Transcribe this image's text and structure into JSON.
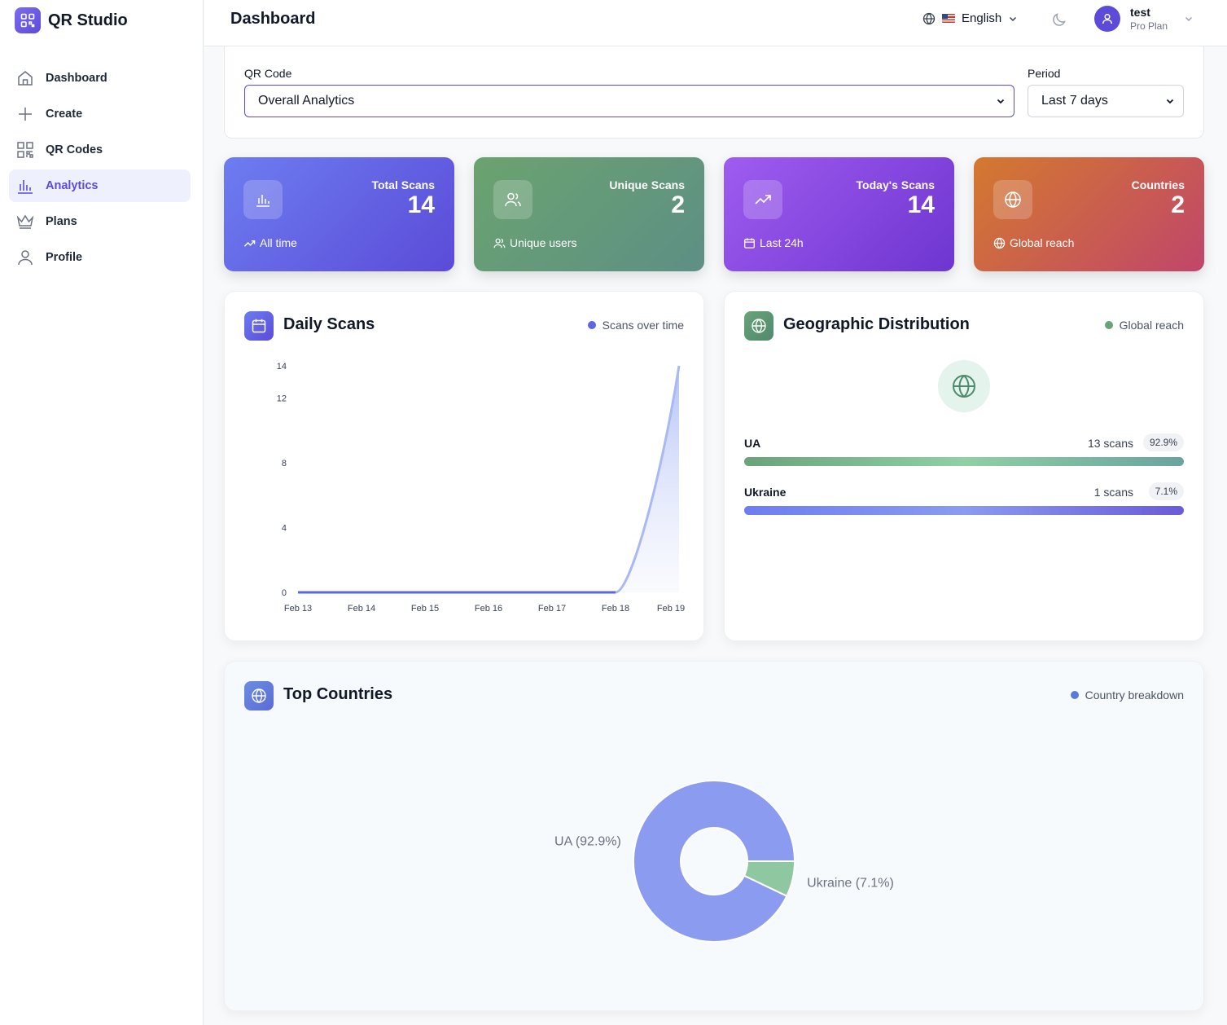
{
  "app": {
    "name": "QR Studio"
  },
  "sidebar": {
    "items": [
      {
        "label": "Dashboard",
        "icon": "home-icon"
      },
      {
        "label": "Create",
        "icon": "plus-icon"
      },
      {
        "label": "QR Codes",
        "icon": "qr-icon"
      },
      {
        "label": "Analytics",
        "icon": "bar-chart-icon",
        "active": true
      },
      {
        "label": "Plans",
        "icon": "crown-icon"
      },
      {
        "label": "Profile",
        "icon": "user-icon"
      }
    ]
  },
  "header": {
    "title": "Dashboard",
    "language": "English",
    "user": {
      "name": "test",
      "plan": "Pro Plan"
    }
  },
  "filters": {
    "qr_label": "QR Code",
    "qr_value": "Overall Analytics",
    "period_label": "Period",
    "period_value": "Last 7 days"
  },
  "stats": [
    {
      "label": "Total Scans",
      "value": "14",
      "foot": "All time",
      "icon": "bar-chart-icon",
      "gradient": [
        "#6d7df0",
        "#5b4bd8"
      ]
    },
    {
      "label": "Unique Scans",
      "value": "2",
      "foot": "Unique users",
      "icon": "users-icon",
      "gradient": [
        "#6aa36f",
        "#5e8f85"
      ]
    },
    {
      "label": "Today's Scans",
      "value": "14",
      "foot": "Last 24h",
      "icon": "trending-up-icon",
      "gradient": [
        "#9f5cf0",
        "#6e35d0"
      ]
    },
    {
      "label": "Countries",
      "value": "2",
      "foot": "Global reach",
      "icon": "globe-icon",
      "gradient": [
        "#d4792f",
        "#c0466a"
      ]
    }
  ],
  "daily": {
    "title": "Daily Scans",
    "legend": "Scans over time",
    "color": "#5b66e0"
  },
  "geo": {
    "title": "Geographic Distribution",
    "legend": "Global reach",
    "rows": [
      {
        "name": "UA",
        "scans": "13 scans",
        "pct": "92.9%",
        "fraction": 1.0
      },
      {
        "name": "Ukraine",
        "scans": "1 scans",
        "pct": "7.1%",
        "fraction": 1.0
      }
    ]
  },
  "top": {
    "title": "Top Countries",
    "legend": "Country breakdown"
  },
  "chart_data": [
    {
      "type": "area",
      "x": [
        "Feb 13",
        "Feb 14",
        "Feb 15",
        "Feb 16",
        "Feb 17",
        "Feb 18",
        "Feb 19"
      ],
      "values": [
        0,
        0,
        0,
        0,
        0,
        0,
        14
      ],
      "yticks": [
        0,
        4,
        8,
        12,
        14
      ],
      "ylim": [
        0,
        14
      ]
    },
    {
      "type": "pie",
      "donut": true,
      "slices": [
        {
          "label": "UA (92.9%)",
          "value": 92.9,
          "color": "#8a9bf0"
        },
        {
          "label": "Ukraine (7.1%)",
          "value": 7.1,
          "color": "#8fc7a0"
        }
      ]
    }
  ]
}
